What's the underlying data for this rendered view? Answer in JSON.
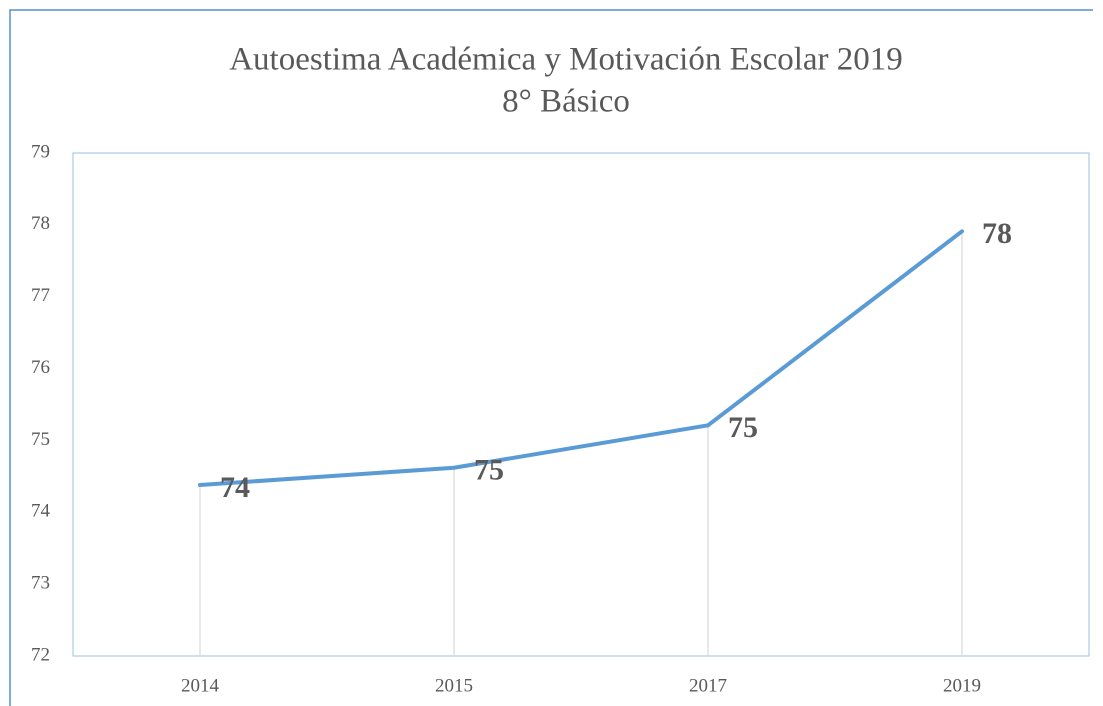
{
  "chart_data": {
    "type": "line",
    "title": [
      "Autoestima Académica y Motivación Escolar 2019",
      "8° Básico"
    ],
    "categories": [
      "2014",
      "2015",
      "2017",
      "2019"
    ],
    "series": [
      {
        "color": "#5b9bd5",
        "values": [
          74.38,
          74.62,
          75.21,
          77.91
        ],
        "value_labels": [
          "74",
          "75",
          "75",
          "78"
        ]
      }
    ],
    "ylim": [
      72,
      79
    ],
    "yticks": [
      72,
      73,
      74,
      75,
      76,
      77,
      78,
      79
    ],
    "drop_lines": true
  }
}
